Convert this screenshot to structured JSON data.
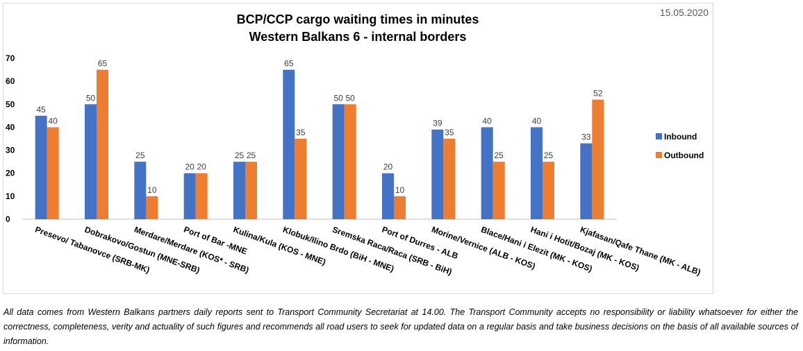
{
  "date": "15.05.2020",
  "footnote": "All data comes from Western Balkans partners daily reports sent to Transport Community Secretariat at 14.00. The Transport Community accepts no responsibility or liability whatsoever for either the correctness, completeness, verity and actuality of such figures and recommends all road users to seek for updated data on a regular basis and take business decisions on the basis of all available sources of information.",
  "colors": {
    "inbound": "#4472C4",
    "outbound": "#ED7D31",
    "axis": "#808080"
  },
  "chart_data": {
    "type": "bar",
    "title": "BCP/CCP cargo waiting times in minutes",
    "subtitle": "Western Balkans 6 - internal borders",
    "categories": [
      "Presevo/ Tabanovce (SRB-MK)",
      "Dobrakovo/Gostun (MNE-SRB)",
      "Merdare/Merdare (KOS* - SRB)",
      "Port of Bar -MNE",
      "Kulina/Kula (KOS - MNE)",
      "Klobuk/Ilino Brdo (BiH - MNE)",
      "Sremska Raca/Raca (SRB - BiH)",
      "Port of Durres - ALB",
      "Morine/Vernice (ALB - KOS)",
      "Blace/Hani i Elezit (MK - KOS)",
      "Hani i Hotit/Bozaj (MK - KOS)",
      "Kjafasan/Qafe Thane (MK - ALB)"
    ],
    "series": [
      {
        "name": "Inbound",
        "values": [
          45,
          50,
          25,
          20,
          25,
          65,
          50,
          20,
          39,
          40,
          40,
          33
        ]
      },
      {
        "name": "Outbound",
        "values": [
          40,
          65,
          10,
          20,
          25,
          35,
          50,
          10,
          35,
          25,
          25,
          52
        ]
      }
    ],
    "ylim": [
      0,
      70
    ],
    "yticks": [
      0,
      10,
      20,
      30,
      40,
      50,
      60,
      70
    ],
    "grid": false,
    "legend": "right"
  }
}
